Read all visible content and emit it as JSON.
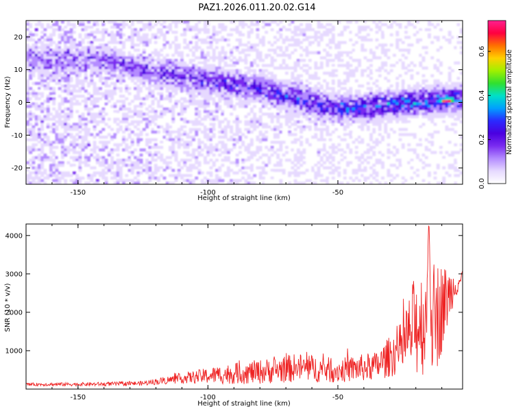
{
  "title": "PAZ1.2026.011.20.02.G14",
  "colors": {
    "snr_line": "#ee2222",
    "axis": "#000000",
    "colormap": [
      "#ffffff",
      "#e6d9ff",
      "#b48cff",
      "#7a2cf0",
      "#4a00e0",
      "#2a2aff",
      "#00a0ff",
      "#00e0c8",
      "#30e030",
      "#a0f000",
      "#ffd000",
      "#ff7000",
      "#ff0040",
      "#ff2090"
    ]
  },
  "chart_data": [
    {
      "type": "heatmap",
      "name": "spectrogram",
      "xlabel": "Height of straight line (km)",
      "ylabel": "Frequency (Hz)",
      "xlim": [
        -170,
        -2
      ],
      "ylim": [
        -25,
        25
      ],
      "xticks": [
        -150,
        -100,
        -50
      ],
      "yticks": [
        -20,
        -10,
        0,
        10,
        20
      ],
      "colorbar": {
        "label": "Normalized spectral amplitude",
        "range": [
          0.0,
          0.74
        ],
        "ticks": [
          0.0,
          0.2,
          0.4,
          0.6
        ],
        "tick_labels": [
          "0.0",
          "0.2",
          "0.4",
          "0.6"
        ]
      },
      "ridge": {
        "x": [
          -140,
          -125,
          -110,
          -95,
          -80,
          -65,
          -50,
          -35,
          -20,
          -5
        ],
        "frequency": [
          13,
          10,
          8,
          6,
          4,
          1,
          -2,
          -1,
          0,
          1
        ]
      },
      "peak": {
        "x": -8,
        "frequency": 0.5,
        "amplitude": 0.74
      }
    },
    {
      "type": "line",
      "name": "snr",
      "xlabel": "Height of straight line (km)",
      "ylabel": "SNR (10 * v/v)",
      "xlim": [
        -170,
        -2
      ],
      "ylim": [
        0,
        4300
      ],
      "xticks": [
        -150,
        -100,
        -50
      ],
      "yticks": [
        1000,
        2000,
        3000,
        4000
      ],
      "envelope": {
        "x": [
          -170,
          -140,
          -125,
          -110,
          -95,
          -80,
          -65,
          -50,
          -35,
          -25,
          -20,
          -12,
          -5,
          -2
        ],
        "mean": [
          120,
          130,
          150,
          280,
          380,
          450,
          560,
          480,
          600,
          1100,
          1700,
          1900,
          2700,
          2900
        ],
        "spread": [
          40,
          50,
          60,
          130,
          250,
          320,
          380,
          320,
          380,
          700,
          1400,
          1500,
          350,
          300
        ]
      },
      "peak": {
        "x": -15,
        "value": 4300
      }
    }
  ]
}
